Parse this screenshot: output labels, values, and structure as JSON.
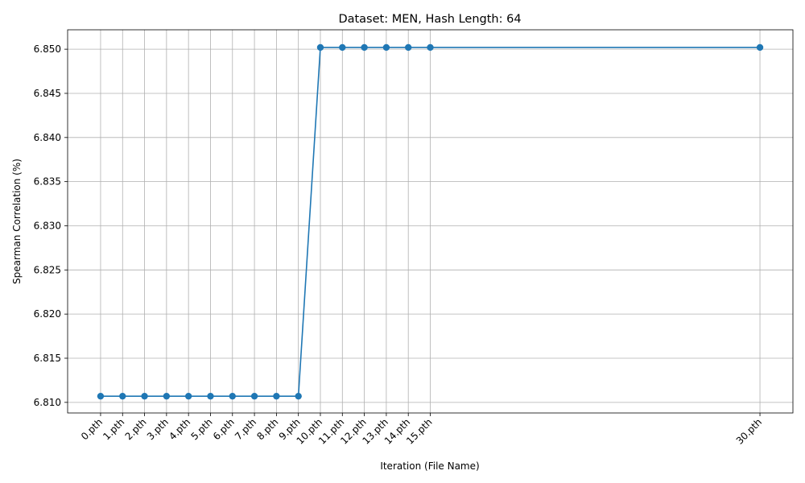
{
  "chart_data": {
    "type": "line",
    "title": "Dataset: MEN, Hash Length: 64",
    "xlabel": "Iteration (File Name)",
    "ylabel": "Spearman Correlation (%)",
    "x": [
      0,
      1,
      2,
      3,
      4,
      5,
      6,
      7,
      8,
      9,
      10,
      11,
      12,
      13,
      14,
      15,
      30
    ],
    "x_tick_labels": [
      "0.pth",
      "1.pth",
      "2.pth",
      "3.pth",
      "4.pth",
      "5.pth",
      "6.pth",
      "7.pth",
      "8.pth",
      "9.pth",
      "10.pth",
      "11.pth",
      "12.pth",
      "13.pth",
      "14.pth",
      "15.pth",
      "30.pth"
    ],
    "y": [
      6.8107,
      6.8107,
      6.8107,
      6.8107,
      6.8107,
      6.8107,
      6.8107,
      6.8107,
      6.8107,
      6.8107,
      6.8502,
      6.8502,
      6.8502,
      6.8502,
      6.8502,
      6.8502,
      6.8502
    ],
    "y_ticks": [
      "6.810",
      "6.815",
      "6.820",
      "6.825",
      "6.830",
      "6.835",
      "6.840",
      "6.845",
      "6.850"
    ],
    "ylim": [
      6.8088,
      6.8522
    ],
    "xlim": [
      -1.5,
      31.5
    ],
    "grid": true,
    "marker": "circle",
    "color": "#1f77b4"
  }
}
